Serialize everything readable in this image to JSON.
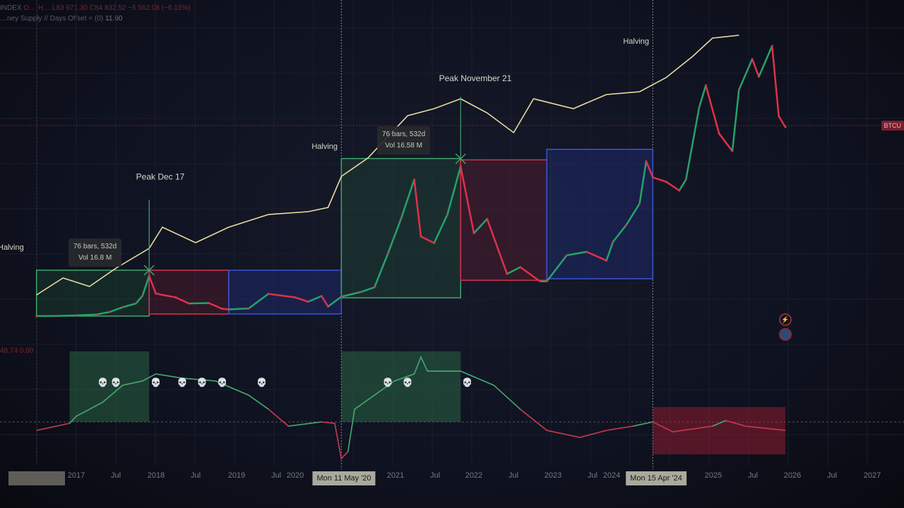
{
  "header": {
    "symbol": "INDEX",
    "ohlc": "O… H… L83 671.30 C84 832.52 −5 562.08 (−6.15%)",
    "indicator": "…ney Supply // Days Offset = (0)",
    "indicator_value": "11.60",
    "osc_legend": "48.74 0.00"
  },
  "price_tag": "BTCU",
  "icons": [
    "lightning-alert-icon",
    "flag-icon"
  ],
  "colors": {
    "up": "#26a269",
    "down": "#e0304a",
    "m2": "#e8dca0",
    "green_box": "#3fa56c",
    "red_box": "#d8324a",
    "blue_box": "#3b53d6",
    "bg": "#0f1220"
  },
  "chart_data": [
    {
      "type": "line",
      "yscale": "linear",
      "ylim": [
        0,
        145000
      ],
      "xlim": [
        "2016-07",
        "2027-02"
      ],
      "grid": true,
      "x_ticks": [
        "2017",
        "Jul",
        "2018",
        "Jul",
        "2019",
        "Jul",
        "2020",
        "2021",
        "Jul",
        "2022",
        "Jul",
        "2023",
        "Jul",
        "2024",
        "2025",
        "Jul",
        "2026",
        "Jul",
        "2027"
      ],
      "crosshair_labels": [
        "Mon 11 May '20",
        "Mon 15 Apr '24"
      ],
      "price_series": [
        [
          "2016-07",
          650
        ],
        [
          "2016-10",
          700
        ],
        [
          "2017-01",
          970
        ],
        [
          "2017-04",
          1350
        ],
        [
          "2017-06",
          2500
        ],
        [
          "2017-08",
          4700
        ],
        [
          "2017-10",
          6400
        ],
        [
          "2017-11",
          10000
        ],
        [
          "2017-12",
          19000
        ],
        [
          "2018-01",
          11000
        ],
        [
          "2018-02",
          10300
        ],
        [
          "2018-04",
          9200
        ],
        [
          "2018-06",
          6400
        ],
        [
          "2018-09",
          6600
        ],
        [
          "2018-11",
          4000
        ],
        [
          "2018-12",
          3700
        ],
        [
          "2019-03",
          4100
        ],
        [
          "2019-06",
          10800
        ],
        [
          "2019-08",
          10000
        ],
        [
          "2019-10",
          9200
        ],
        [
          "2019-12",
          7200
        ],
        [
          "2020-02",
          9800
        ],
        [
          "2020-03",
          5000
        ],
        [
          "2020-05",
          9500
        ],
        [
          "2020-08",
          11700
        ],
        [
          "2020-10",
          13800
        ],
        [
          "2020-12",
          29000
        ],
        [
          "2021-02",
          45000
        ],
        [
          "2021-04",
          63000
        ],
        [
          "2021-05",
          37000
        ],
        [
          "2021-07",
          34000
        ],
        [
          "2021-09",
          47000
        ],
        [
          "2021-11",
          69000
        ],
        [
          "2022-01",
          38500
        ],
        [
          "2022-03",
          45000
        ],
        [
          "2022-06",
          19900
        ],
        [
          "2022-08",
          23000
        ],
        [
          "2022-11",
          16500
        ],
        [
          "2022-12",
          16500
        ],
        [
          "2023-03",
          28400
        ],
        [
          "2023-06",
          30000
        ],
        [
          "2023-09",
          26000
        ],
        [
          "2023-10",
          34600
        ],
        [
          "2023-12",
          42300
        ],
        [
          "2024-02",
          52000
        ],
        [
          "2024-03",
          71300
        ],
        [
          "2024-04",
          64000
        ],
        [
          "2024-06",
          62000
        ],
        [
          "2024-08",
          58000
        ],
        [
          "2024-09",
          63000
        ],
        [
          "2024-11",
          96000
        ],
        [
          "2024-12",
          106000
        ],
        [
          "2025-02",
          84000
        ],
        [
          "2025-04",
          76000
        ],
        [
          "2025-05",
          104000
        ],
        [
          "2025-07",
          118000
        ],
        [
          "2025-08",
          110000
        ],
        [
          "2025-10",
          124000
        ],
        [
          "2025-11",
          92000
        ],
        [
          "2025-12",
          87000
        ]
      ],
      "m2_series": [
        [
          "2016-07",
          2.6
        ],
        [
          "2016-11",
          3.8
        ],
        [
          "2017-03",
          3.2
        ],
        [
          "2017-07",
          4.5
        ],
        [
          "2017-12",
          5.9
        ],
        [
          "2018-02",
          7.4
        ],
        [
          "2018-07",
          6.3
        ],
        [
          "2018-12",
          7.4
        ],
        [
          "2019-06",
          8.3
        ],
        [
          "2019-12",
          8.5
        ],
        [
          "2020-03",
          8.8
        ],
        [
          "2020-05",
          11.0
        ],
        [
          "2020-09",
          12.3
        ],
        [
          "2021-03",
          15.3
        ],
        [
          "2021-07",
          15.8
        ],
        [
          "2021-11",
          16.5
        ],
        [
          "2022-03",
          15.5
        ],
        [
          "2022-07",
          14.1
        ],
        [
          "2022-10",
          16.5
        ],
        [
          "2023-04",
          15.8
        ],
        [
          "2023-09",
          16.8
        ],
        [
          "2024-02",
          17.0
        ],
        [
          "2024-06",
          18.0
        ],
        [
          "2024-10",
          19.5
        ],
        [
          "2025-01",
          20.8
        ],
        [
          "2025-05",
          21.0
        ]
      ],
      "boxes": [
        {
          "color": "green",
          "from": "2016-07",
          "to": "2017-12",
          "low": 650,
          "high": 21600
        },
        {
          "color": "red",
          "from": "2017-12",
          "to": "2018-12",
          "low": 1600,
          "high": 21600
        },
        {
          "color": "blue",
          "from": "2018-12",
          "to": "2020-05",
          "low": 1600,
          "high": 21600
        },
        {
          "color": "green",
          "from": "2020-05",
          "to": "2021-11",
          "low": 9000,
          "high": 72600
        },
        {
          "color": "red",
          "from": "2021-11",
          "to": "2022-12",
          "low": 17000,
          "high": 72000
        },
        {
          "color": "blue",
          "from": "2022-12",
          "to": "2024-04",
          "low": 17700,
          "high": 76800
        }
      ],
      "annotations": [
        {
          "text": "Halving",
          "date": "2016-07",
          "price": 31000
        },
        {
          "text": "Halving",
          "date": "2020-05",
          "price": 77000
        },
        {
          "text": "Halving",
          "date": "2024-04",
          "price": 125000
        },
        {
          "text": "Peak Dec 17",
          "date": "2017-12",
          "price": 63000
        },
        {
          "text": "Peak November 21",
          "date": "2021-11",
          "price": 108000
        }
      ],
      "measure_labels": [
        {
          "line1": "76 bars, 532d",
          "line2": "Vol 16.8 M"
        },
        {
          "line1": "76 bars, 532d",
          "line2": "Vol 16.58 M"
        }
      ]
    },
    {
      "type": "line",
      "panel": "oscillator",
      "ylim": [
        -30,
        50
      ],
      "series": [
        [
          "2016-07",
          -6
        ],
        [
          "2016-12",
          -1
        ],
        [
          "2017-01",
          4
        ],
        [
          "2017-05",
          14
        ],
        [
          "2017-08",
          26
        ],
        [
          "2017-11",
          29
        ],
        [
          "2018-01",
          34
        ],
        [
          "2018-05",
          31
        ],
        [
          "2018-10",
          29
        ],
        [
          "2019-03",
          19
        ],
        [
          "2019-06",
          9
        ],
        [
          "2019-09",
          -3
        ],
        [
          "2020-02",
          0
        ],
        [
          "2020-04",
          -1
        ],
        [
          "2020-05",
          -26
        ],
        [
          "2020-06",
          -21
        ],
        [
          "2020-07",
          9
        ],
        [
          "2020-10",
          19
        ],
        [
          "2021-01",
          29
        ],
        [
          "2021-04",
          34
        ],
        [
          "2021-05",
          46
        ],
        [
          "2021-06",
          36
        ],
        [
          "2021-11",
          36
        ],
        [
          "2022-04",
          26
        ],
        [
          "2022-08",
          9
        ],
        [
          "2022-12",
          -6
        ],
        [
          "2023-05",
          -11
        ],
        [
          "2023-09",
          -6
        ],
        [
          "2024-01",
          -3
        ],
        [
          "2024-04",
          0
        ],
        [
          "2024-07",
          -7
        ],
        [
          "2025-01",
          -3
        ],
        [
          "2025-03",
          1
        ],
        [
          "2025-06",
          -3
        ],
        [
          "2025-12",
          -6
        ]
      ],
      "skulls": [
        "2017-05",
        "2017-07",
        "2018-01",
        "2018-05",
        "2018-08",
        "2018-11",
        "2019-05",
        "2020-12",
        "2021-03",
        "2021-12"
      ],
      "boxes": [
        {
          "color": "green",
          "from": "2016-12",
          "to": "2017-12"
        },
        {
          "color": "green",
          "from": "2020-05",
          "to": "2021-11"
        },
        {
          "color": "red",
          "from": "2024-04",
          "to": "2025-12"
        }
      ]
    }
  ]
}
